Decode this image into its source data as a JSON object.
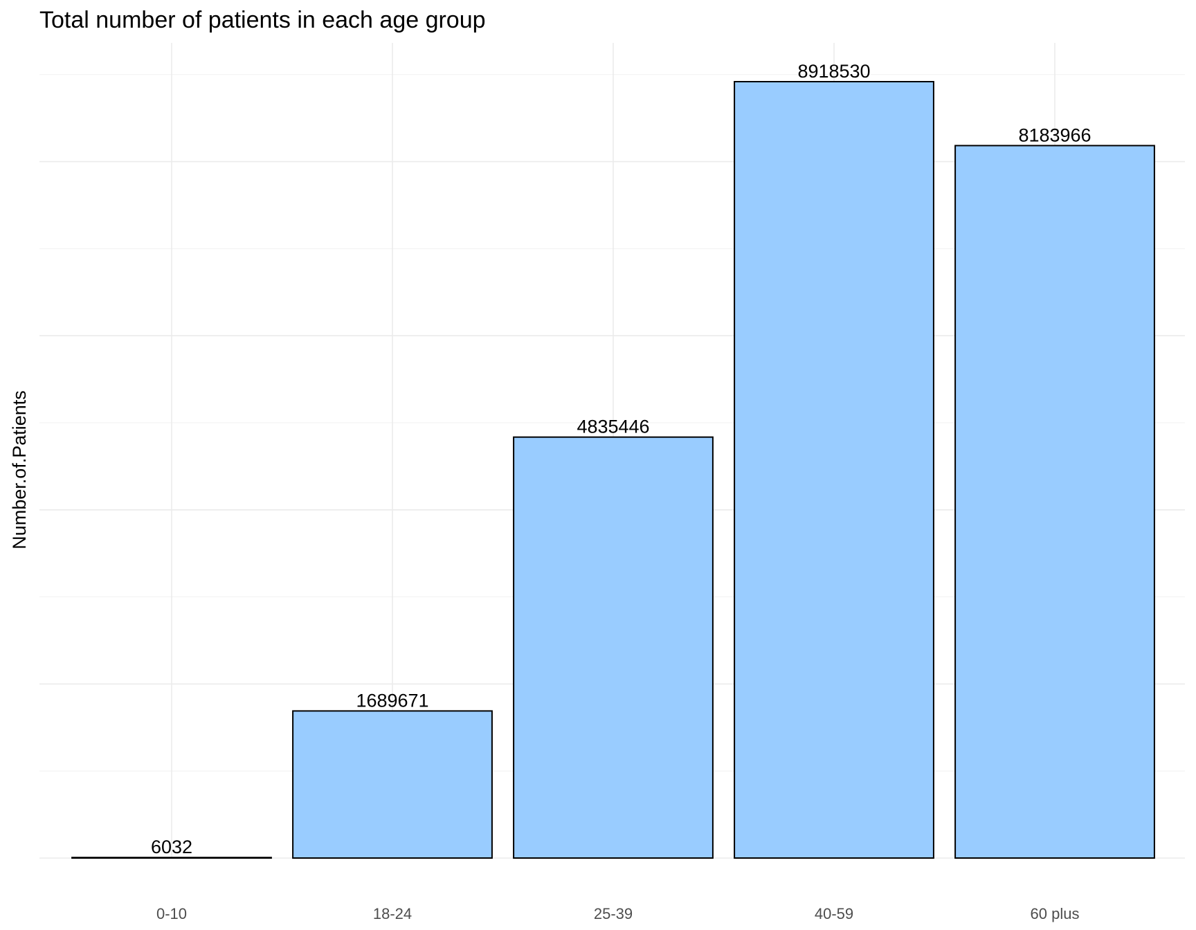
{
  "chart_data": {
    "type": "bar",
    "title": "Total number of patients in each age group",
    "xlabel": "",
    "ylabel": "Number.of.Patients",
    "categories": [
      "0-10",
      "18-24",
      "25-39",
      "40-59",
      "60 plus"
    ],
    "values": [
      6032,
      1689671,
      4835446,
      8918530,
      8183966
    ],
    "data_labels": [
      "6032",
      "1689671",
      "4835446",
      "8918530",
      "8183966"
    ],
    "ylim": [
      0,
      9364457
    ],
    "y_tick_labels_shown": false,
    "grid": true,
    "legend": "none",
    "colors": {
      "bar_fill": "#99ccff",
      "bar_stroke": "#000000",
      "grid": "#ebebeb"
    }
  }
}
